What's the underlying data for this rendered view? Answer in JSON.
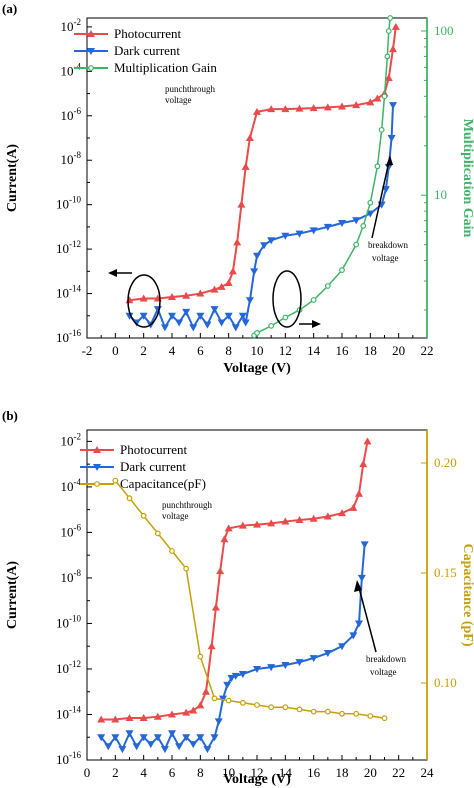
{
  "colors": {
    "photocurrent": "#ea4a4a",
    "dark_current": "#2367d8",
    "multiplication_gain": "#3cb566",
    "capacitance": "#c7a007",
    "gain_axis": "#3cb566",
    "cap_axis": "#c7a007"
  },
  "chart_data": [
    {
      "panel": "(a)",
      "type": "line",
      "xlabel": "Voltage (V)",
      "ylabel": "Current(A)",
      "y2label": "Multiplication Gain",
      "xlim": [
        -2,
        22
      ],
      "xticks": [
        "-2",
        "0",
        "2",
        "4",
        "6",
        "8",
        "10",
        "12",
        "14",
        "16",
        "18",
        "20",
        "22"
      ],
      "yscale": "log",
      "ylim_exp": [
        -16,
        -1.6
      ],
      "yticks_exp": [
        -16,
        -14,
        -12,
        -10,
        -8,
        -6,
        -4,
        -2
      ],
      "y2scale": "log",
      "y2lim": [
        1.35,
        120
      ],
      "y2ticks": [
        "10",
        "100"
      ],
      "legend_position": "top-left",
      "grid": false,
      "series": [
        {
          "name": "Photocurrent",
          "axis": "left",
          "marker": "triangle-up",
          "x": [
            1,
            2,
            3,
            4,
            5,
            6,
            7,
            7.5,
            8,
            8.3,
            8.6,
            8.9,
            9.2,
            9.5,
            10,
            11,
            12,
            13,
            14,
            15,
            16,
            17,
            18,
            18.5,
            19,
            19.3,
            19.6,
            19.8
          ],
          "y": [
            5e-15,
            6e-15,
            6e-15,
            7e-15,
            8e-15,
            1e-14,
            1.5e-14,
            2e-14,
            3e-14,
            1e-13,
            2e-12,
            1e-10,
            5e-09,
            1e-07,
            1.5e-06,
            2e-06,
            2e-06,
            2.1e-06,
            2.2e-06,
            2.4e-06,
            2.6e-06,
            3e-06,
            4e-06,
            6e-06,
            1e-05,
            5e-05,
            0.001,
            0.01
          ]
        },
        {
          "name": "Dark current",
          "axis": "left",
          "marker": "triangle-down",
          "x": [
            1,
            1.5,
            2,
            2.5,
            3,
            3.5,
            4,
            4.5,
            5,
            5.5,
            6,
            6.5,
            7,
            7.5,
            8,
            8.5,
            9,
            9.2,
            9.5,
            9.8,
            10,
            10.5,
            11,
            12,
            13,
            14,
            15,
            16,
            17,
            18,
            18.8,
            19.1,
            19.3,
            19.5,
            19.6
          ],
          "y": [
            1e-15,
            5e-16,
            1e-15,
            4e-16,
            2e-15,
            3e-16,
            1e-15,
            5e-16,
            1.5e-15,
            3e-16,
            1e-15,
            4e-16,
            2e-15,
            5e-16,
            1e-15,
            3e-16,
            1e-15,
            5e-16,
            5e-15,
            1e-13,
            5e-13,
            1.5e-12,
            2.5e-12,
            4e-12,
            5e-12,
            7e-12,
            1e-11,
            1.5e-11,
            2e-11,
            4e-11,
            1e-10,
            5e-10,
            5e-09,
            1e-07,
            3e-06
          ]
        },
        {
          "name": "Multiplication Gain",
          "axis": "right",
          "marker": "circle",
          "x": [
            9.8,
            10,
            11,
            12,
            13,
            14,
            15,
            16,
            17,
            17.5,
            18,
            18.5,
            18.8,
            19,
            19.2,
            19.3,
            19.4
          ],
          "y": [
            1.4,
            1.45,
            1.6,
            1.8,
            2.0,
            2.3,
            2.8,
            3.5,
            5,
            6.5,
            9,
            15,
            25,
            40,
            70,
            100,
            120
          ]
        }
      ],
      "annotations": [
        {
          "text_lines": [
            "punchthrough",
            "voltage"
          ]
        },
        {
          "text_lines": [
            "breakdown",
            "voltage"
          ]
        }
      ]
    },
    {
      "panel": "(b)",
      "type": "line",
      "xlabel": "Voltage (V)",
      "ylabel": "Current(A)",
      "y2label": "Capacitance (pF)",
      "xlim": [
        0,
        24
      ],
      "xticks": [
        "0",
        "2",
        "4",
        "6",
        "8",
        "10",
        "12",
        "14",
        "16",
        "18",
        "20",
        "22",
        "24"
      ],
      "yscale": "log",
      "ylim_exp": [
        -16,
        -1.5
      ],
      "yticks_exp": [
        -16,
        -14,
        -12,
        -10,
        -8,
        -6,
        -4,
        -2
      ],
      "y2lim": [
        0.065,
        0.215
      ],
      "y2ticks": [
        "0.10",
        "0.15",
        "0.20"
      ],
      "legend_position": "top-left",
      "grid": false,
      "series": [
        {
          "name": "Photocurrent",
          "axis": "left",
          "marker": "triangle-up",
          "x": [
            1,
            2,
            3,
            4,
            5,
            6,
            7,
            7.5,
            8,
            8.4,
            8.8,
            9.1,
            9.4,
            9.7,
            10,
            11,
            12,
            13,
            14,
            15,
            16,
            17,
            18,
            18.8,
            19.2,
            19.5,
            19.8
          ],
          "y": [
            6e-15,
            6e-15,
            7e-15,
            7e-15,
            8e-15,
            1e-14,
            1.2e-14,
            1.5e-14,
            2.5e-14,
            1e-13,
            1e-11,
            5e-10,
            2e-08,
            5e-07,
            1.5e-06,
            2e-06,
            2.2e-06,
            2.5e-06,
            3e-06,
            3.5e-06,
            4e-06,
            5e-06,
            7e-06,
            1.2e-05,
            5e-05,
            0.001,
            0.01
          ]
        },
        {
          "name": "Dark current",
          "axis": "left",
          "marker": "triangle-down",
          "x": [
            1,
            1.5,
            2,
            2.5,
            3,
            3.5,
            4,
            4.5,
            5,
            5.5,
            6,
            6.5,
            7,
            7.5,
            8,
            8.5,
            9,
            9.3,
            9.6,
            9.9,
            10.2,
            10.5,
            11,
            12,
            13,
            14,
            15,
            16,
            17,
            18,
            18.8,
            19.2,
            19.4,
            19.6
          ],
          "y": [
            1e-15,
            4e-16,
            1e-15,
            3e-16,
            1.5e-15,
            4e-16,
            1e-15,
            5e-16,
            1e-15,
            3e-16,
            1.5e-15,
            4e-16,
            1e-15,
            5e-16,
            1e-15,
            3e-16,
            1e-15,
            5e-15,
            5e-14,
            2e-13,
            4e-13,
            5e-13,
            6e-13,
            1e-12,
            1.2e-12,
            1.5e-12,
            2e-12,
            3e-12,
            5e-12,
            1e-11,
            3e-11,
            1e-10,
            1e-08,
            3e-07
          ]
        },
        {
          "name": "Capacitance(pF)",
          "axis": "right",
          "marker": "circle",
          "x": [
            2,
            3,
            4,
            5,
            6,
            7,
            8,
            9,
            10,
            11,
            12,
            13,
            14,
            15,
            16,
            17,
            18,
            19,
            20,
            21
          ],
          "y": [
            0.192,
            0.184,
            0.176,
            0.168,
            0.16,
            0.152,
            0.112,
            0.093,
            0.092,
            0.091,
            0.09,
            0.089,
            0.089,
            0.088,
            0.087,
            0.087,
            0.086,
            0.086,
            0.085,
            0.084
          ]
        }
      ],
      "annotations": [
        {
          "text_lines": [
            "punchthrough",
            "voltage"
          ]
        },
        {
          "text_lines": [
            "breakdown",
            "voltage"
          ]
        }
      ]
    }
  ]
}
